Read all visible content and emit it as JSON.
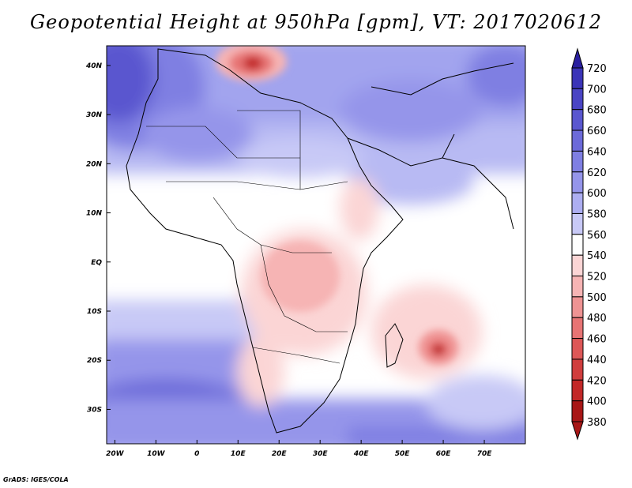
{
  "title": "Geopotential Height at 950hPa [gpm], VT: 2017020612",
  "credit": "GrADS: IGES/COLA",
  "map": {
    "lat_labels": [
      "40N",
      "30N",
      "20N",
      "10N",
      "EQ",
      "10S",
      "20S",
      "30S"
    ],
    "lat_values": [
      40,
      30,
      20,
      10,
      0,
      -10,
      -20,
      -30
    ],
    "lon_labels": [
      "20W",
      "10W",
      "0",
      "10E",
      "20E",
      "30E",
      "40E",
      "50E",
      "60E",
      "70E"
    ],
    "lon_values": [
      -20,
      -10,
      0,
      10,
      20,
      30,
      40,
      50,
      60,
      70
    ],
    "lon_range": [
      -22,
      80
    ],
    "lat_range": [
      -37,
      44
    ]
  },
  "colorbar": {
    "levels": [
      "720",
      "700",
      "680",
      "660",
      "640",
      "620",
      "600",
      "580",
      "560",
      "540",
      "520",
      "500",
      "480",
      "460",
      "440",
      "420",
      "400",
      "380"
    ],
    "colors": [
      "#2a1fa0",
      "#3b34b8",
      "#4a44c4",
      "#5a57cf",
      "#6c6ad9",
      "#7f7fe2",
      "#9595ea",
      "#adaef1",
      "#c8c9f6",
      "#ffffff",
      "#fbd5d5",
      "#f6b4b4",
      "#ef9393",
      "#e77474",
      "#dd5757",
      "#d03d3d",
      "#c22828",
      "#a81616"
    ]
  }
}
